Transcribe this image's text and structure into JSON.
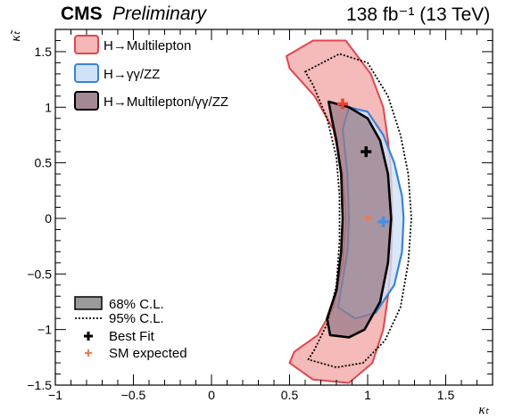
{
  "header": {
    "experiment": "CMS",
    "status": "Preliminary",
    "luminosity": "138 fb⁻¹ (13 TeV)"
  },
  "chart_data": {
    "type": "contour",
    "xlabel": "κₜ",
    "ylabel": "κ̃ₜ",
    "xlim": [
      -1.0,
      1.8
    ],
    "ylim": [
      -1.5,
      1.7
    ],
    "x_ticks": [
      "−1",
      "−0.5",
      "0",
      "0.5",
      "1",
      "1.5"
    ],
    "y_ticks": [
      "−1.5",
      "−1",
      "−0.5",
      "0",
      "0.5",
      "1",
      "1.5"
    ],
    "colors": {
      "multilepton_fill": "#f4b3b3",
      "multilepton_line": "#e0474c",
      "gammagamma_fill": "#cfe2f7",
      "gammagamma_line": "#3b82d6",
      "combined_fill": "#9a7c8a",
      "combined_line": "#000000",
      "multilepton_best_fit": "#e8432f",
      "gammagamma_best_fit": "#4a90e2",
      "sm_expected": "#f07a4a"
    },
    "contours": [
      {
        "name": "H→Multilepton",
        "cl": "68%",
        "points": [
          [
            0.48,
            1.46
          ],
          [
            0.65,
            1.6
          ],
          [
            0.86,
            1.6
          ],
          [
            1.02,
            1.3
          ],
          [
            1.1,
            1.0
          ],
          [
            1.13,
            0.7
          ],
          [
            1.15,
            0.4
          ],
          [
            1.16,
            0.0
          ],
          [
            1.15,
            -0.4
          ],
          [
            1.13,
            -0.7
          ],
          [
            1.1,
            -1.0
          ],
          [
            1.03,
            -1.3
          ],
          [
            0.88,
            -1.48
          ],
          [
            0.65,
            -1.45
          ],
          [
            0.5,
            -1.3
          ],
          [
            0.53,
            -1.2
          ],
          [
            0.68,
            -1.05
          ],
          [
            0.78,
            -0.8
          ],
          [
            0.84,
            -0.4
          ],
          [
            0.86,
            0.0
          ],
          [
            0.84,
            0.4
          ],
          [
            0.78,
            0.8
          ],
          [
            0.66,
            1.1
          ],
          [
            0.5,
            1.35
          ]
        ]
      },
      {
        "name": "H→γγ/ZZ",
        "cl": "68%",
        "points": [
          [
            0.88,
            1.0
          ],
          [
            1.0,
            0.96
          ],
          [
            1.1,
            0.75
          ],
          [
            1.17,
            0.5
          ],
          [
            1.22,
            0.2
          ],
          [
            1.23,
            0.0
          ],
          [
            1.22,
            -0.3
          ],
          [
            1.17,
            -0.6
          ],
          [
            1.05,
            -0.85
          ],
          [
            0.92,
            -0.9
          ],
          [
            0.81,
            -0.8
          ],
          [
            0.84,
            -0.55
          ],
          [
            0.87,
            -0.3
          ],
          [
            0.88,
            0.0
          ],
          [
            0.87,
            0.4
          ],
          [
            0.84,
            0.8
          ]
        ]
      },
      {
        "name": "H→Multilepton/γγ/ZZ",
        "cl": "68%",
        "points": [
          [
            0.75,
            1.05
          ],
          [
            0.88,
            1.0
          ],
          [
            1.0,
            0.9
          ],
          [
            1.08,
            0.7
          ],
          [
            1.13,
            0.4
          ],
          [
            1.15,
            0.0
          ],
          [
            1.13,
            -0.4
          ],
          [
            1.08,
            -0.75
          ],
          [
            0.98,
            -1.0
          ],
          [
            0.88,
            -1.07
          ],
          [
            0.76,
            -1.05
          ],
          [
            0.74,
            -0.9
          ],
          [
            0.8,
            -0.65
          ],
          [
            0.83,
            -0.3
          ],
          [
            0.84,
            0.0
          ],
          [
            0.83,
            0.4
          ],
          [
            0.8,
            0.7
          ],
          [
            0.77,
            0.9
          ]
        ]
      },
      {
        "name": "H→Multilepton/γγ/ZZ",
        "cl": "95%",
        "points": [
          [
            0.6,
            1.32
          ],
          [
            0.82,
            1.48
          ],
          [
            1.0,
            1.4
          ],
          [
            1.13,
            1.1
          ],
          [
            1.21,
            0.75
          ],
          [
            1.26,
            0.4
          ],
          [
            1.28,
            0.0
          ],
          [
            1.26,
            -0.4
          ],
          [
            1.21,
            -0.8
          ],
          [
            1.11,
            -1.1
          ],
          [
            0.97,
            -1.3
          ],
          [
            0.8,
            -1.34
          ],
          [
            0.62,
            -1.27
          ],
          [
            0.66,
            -1.18
          ],
          [
            0.74,
            -0.95
          ],
          [
            0.8,
            -0.6
          ],
          [
            0.82,
            -0.2
          ],
          [
            0.82,
            0.2
          ],
          [
            0.8,
            0.55
          ],
          [
            0.74,
            0.9
          ],
          [
            0.65,
            1.2
          ]
        ]
      }
    ],
    "points": [
      {
        "label": "Best Fit",
        "analysis": "H→Multilepton",
        "x": 0.84,
        "y": 1.03
      },
      {
        "label": "Best Fit",
        "analysis": "H→Multilepton/γγ/ZZ",
        "x": 0.99,
        "y": 0.6
      },
      {
        "label": "Best Fit",
        "analysis": "H→γγ/ZZ",
        "x": 1.1,
        "y": -0.03
      },
      {
        "label": "SM expected",
        "x": 1.0,
        "y": 0.0
      }
    ],
    "legend": {
      "placement": "top-left and bottom-left",
      "entries": [
        "H→Multilepton",
        "H→γγ/ZZ",
        "H→Multilepton/γγ/ZZ",
        "68% C.L.",
        "95% C.L.",
        "Best Fit",
        "SM expected"
      ]
    }
  }
}
